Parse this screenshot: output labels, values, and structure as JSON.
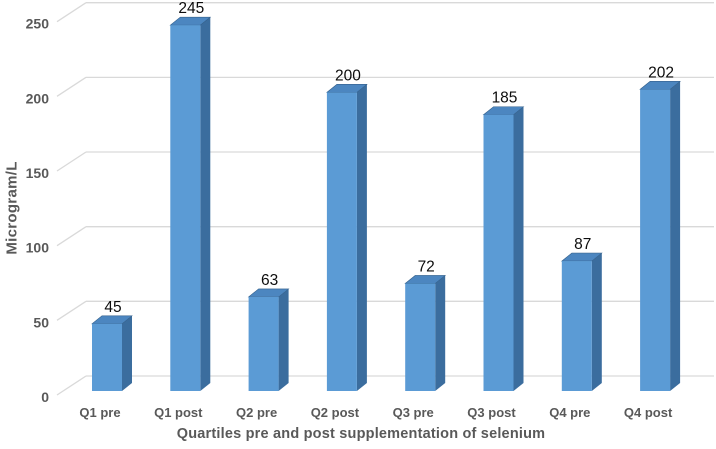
{
  "chart_data": {
    "type": "bar",
    "style": "3d-column",
    "title": "",
    "xlabel": "Quartiles pre and post supplementation of selenium",
    "ylabel": "Microgram/L",
    "categories": [
      "Q1 pre",
      "Q1 post",
      "Q2 pre",
      "Q2 post",
      "Q3 pre",
      "Q3 post",
      "Q4 pre",
      "Q4 post"
    ],
    "values": [
      45,
      245,
      63,
      200,
      72,
      185,
      87,
      202
    ],
    "value_labels": [
      "45",
      "245",
      "63",
      "200",
      "72",
      "185",
      "87",
      "202"
    ],
    "yticks": [
      0,
      50,
      100,
      150,
      200,
      250
    ],
    "ytick_labels": [
      "0",
      "50",
      "100",
      "150",
      "200",
      "250"
    ],
    "ylim": [
      0,
      250
    ],
    "grid": true,
    "legend_position": "none",
    "colors": {
      "bar_front": "#5B9BD5",
      "bar_top": "#4C86C0",
      "bar_side": "#3B6D9E",
      "bar_edge": "#35618C",
      "gridline": "#D9D9D9",
      "axis_text": "#595959",
      "value_label": "#0d0d0d",
      "background": "#FFFFFF"
    }
  }
}
